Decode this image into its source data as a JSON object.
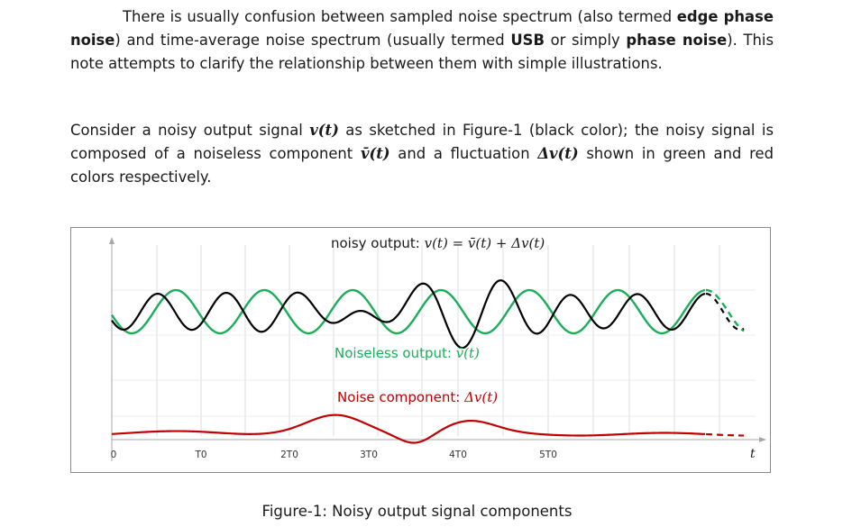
{
  "paragraph1": {
    "t1": "There is usually confusion between sampled noise spectrum (also termed ",
    "b1": "edge phase noise",
    "t2": ") and time-average noise spectrum (usually termed ",
    "b2": "USB",
    "t3": " or simply ",
    "b3": "phase noise",
    "t4": "). This note attempts to clarify the relationship between them with simple illustrations."
  },
  "paragraph2": {
    "t1": "Consider a noisy output signal ",
    "m1": "v(t)",
    "t2": " as sketched in Figure-1 (black color); the noisy signal is composed of a noiseless component ",
    "m2": "v̄(t)",
    "t3": " and a fluctuation ",
    "m3": "Δv(t)",
    "t4": " shown in green and red colors respectively."
  },
  "figure": {
    "caption": "Figure-1: Noisy output signal components",
    "label_noisy_text": "noisy output: ",
    "label_noisy_math": "v(t) = v̄(t) + Δv(t)",
    "label_noiseless_text": "Noiseless output: ",
    "label_noiseless_math": "v̄(t)",
    "label_noise_text": "Noise component: ",
    "label_noise_math": "Δv(t)",
    "tick_labels": [
      "0",
      "T0",
      "2T0",
      "3T0",
      "4T0",
      "5T0"
    ],
    "axis_label": "t",
    "colors": {
      "noisy": "#000000",
      "noiseless": "#1aae5a",
      "noise": "#c00000",
      "grid": "#d9d9d9",
      "axis": "#a6a6a6"
    }
  }
}
